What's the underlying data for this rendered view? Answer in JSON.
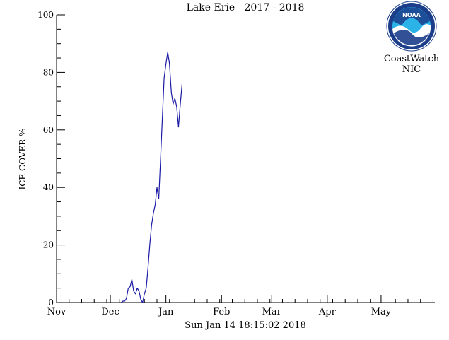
{
  "chart_data": {
    "type": "line",
    "title": "Lake Erie   2017 - 2018",
    "ylabel": "ICE COVER %",
    "xlabel": "",
    "timestamp": "Sun Jan 14 18:15:02 2018",
    "ylim": [
      0,
      100
    ],
    "yticks": [
      0,
      20,
      40,
      60,
      80,
      100
    ],
    "xlim": [
      "2017-11-01",
      "2018-05-31"
    ],
    "xtick_labels": [
      "Nov",
      "Dec",
      "Jan",
      "Feb",
      "Mar",
      "Apr",
      "May"
    ],
    "xtick_dates": [
      "2017-11-01",
      "2017-12-01",
      "2018-01-01",
      "2018-02-01",
      "2018-03-01",
      "2018-04-01",
      "2018-05-01"
    ],
    "line_color": "#1a1aa6",
    "series": [
      {
        "x": [
          "2017-12-07",
          "2017-12-08",
          "2017-12-09",
          "2017-12-10",
          "2017-12-11",
          "2017-12-12",
          "2017-12-13",
          "2017-12-14",
          "2017-12-15",
          "2017-12-16",
          "2017-12-17",
          "2017-12-18",
          "2017-12-19",
          "2017-12-20",
          "2017-12-21",
          "2017-12-22",
          "2017-12-23",
          "2017-12-24",
          "2017-12-25",
          "2017-12-26",
          "2017-12-27",
          "2017-12-28",
          "2017-12-29",
          "2017-12-30",
          "2017-12-31",
          "2018-01-01",
          "2018-01-02",
          "2018-01-03",
          "2018-01-04",
          "2018-01-05",
          "2018-01-06",
          "2018-01-07",
          "2018-01-08",
          "2018-01-09",
          "2018-01-10",
          "2018-01-11",
          "2018-01-12",
          "2018-01-13",
          "2018-01-14"
        ],
        "values": [
          0,
          0.5,
          0.5,
          1.5,
          5,
          5.5,
          8,
          4,
          3,
          5,
          4,
          1,
          0,
          3,
          5,
          12,
          20,
          27,
          31,
          34,
          40,
          36,
          50,
          64,
          78,
          83,
          87,
          83,
          73,
          69,
          71,
          68,
          61,
          69,
          76,
          null,
          null,
          null,
          null
        ]
      }
    ],
    "logo": {
      "agency": "NOAA",
      "line1": "CoastWatch",
      "line2": "NIC"
    }
  }
}
